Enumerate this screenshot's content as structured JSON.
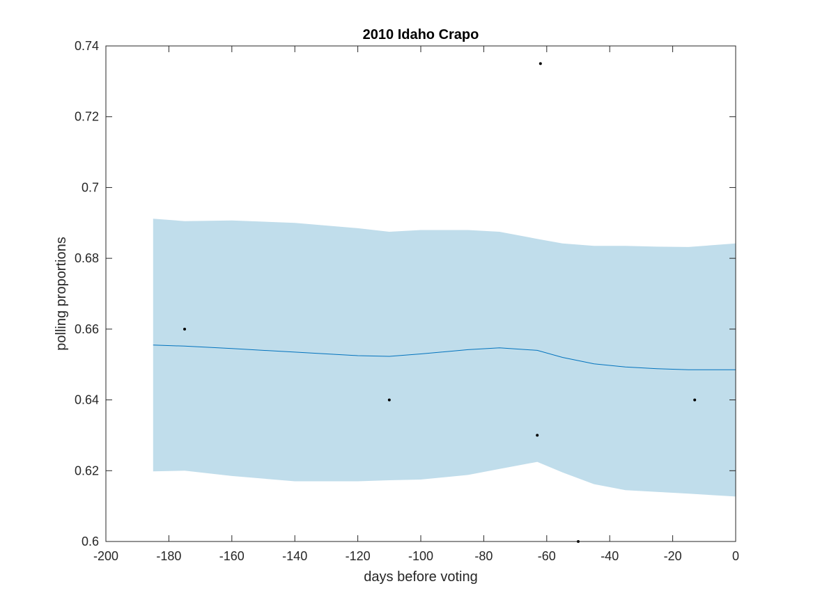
{
  "chart_data": {
    "type": "line",
    "title": "2010 Idaho Crapo",
    "xlabel": "days before voting",
    "ylabel": "polling proportions",
    "xlim": [
      -200,
      0
    ],
    "ylim": [
      0.6,
      0.74
    ],
    "xticks": [
      -200,
      -180,
      -160,
      -140,
      -120,
      -100,
      -80,
      -60,
      -40,
      -20,
      0
    ],
    "yticks": [
      0.6,
      0.62,
      0.64,
      0.66,
      0.68,
      0.7,
      0.72,
      0.74
    ],
    "xtick_labels": [
      "-200",
      "-180",
      "-160",
      "-140",
      "-120",
      "-100",
      "-80",
      "-60",
      "-40",
      "-20",
      "0"
    ],
    "ytick_labels": [
      "0.6",
      "0.62",
      "0.64",
      "0.66",
      "0.68",
      "0.7",
      "0.72",
      "0.74"
    ],
    "grid": false,
    "series": [
      {
        "type": "line",
        "color": "#0072BD",
        "x": [
          -185,
          -175,
          -160,
          -140,
          -120,
          -110,
          -100,
          -85,
          -75,
          -63,
          -55,
          -45,
          -35,
          -25,
          -15,
          0
        ],
        "y": [
          0.6555,
          0.6552,
          0.6545,
          0.6535,
          0.6525,
          0.6523,
          0.653,
          0.6542,
          0.6547,
          0.654,
          0.652,
          0.6502,
          0.6493,
          0.6488,
          0.6485,
          0.6485
        ]
      },
      {
        "type": "band",
        "color": "#C0DDEB",
        "x": [
          -185,
          -175,
          -160,
          -140,
          -120,
          -110,
          -100,
          -85,
          -75,
          -63,
          -55,
          -45,
          -35,
          -25,
          -15,
          0
        ],
        "upper": [
          0.6912,
          0.6905,
          0.6907,
          0.69,
          0.6885,
          0.6875,
          0.688,
          0.688,
          0.6875,
          0.6855,
          0.6842,
          0.6835,
          0.6835,
          0.6833,
          0.6832,
          0.6842
        ],
        "lower": [
          0.6198,
          0.62,
          0.6185,
          0.617,
          0.617,
          0.6173,
          0.6175,
          0.6188,
          0.6205,
          0.6225,
          0.6195,
          0.6162,
          0.6145,
          0.614,
          0.6135,
          0.6127
        ]
      },
      {
        "type": "scatter",
        "color": "#000000",
        "x": [
          -175,
          -110,
          -63,
          -62,
          -50,
          -13
        ],
        "y": [
          0.66,
          0.64,
          0.63,
          0.735,
          0.6,
          0.64
        ]
      }
    ]
  }
}
